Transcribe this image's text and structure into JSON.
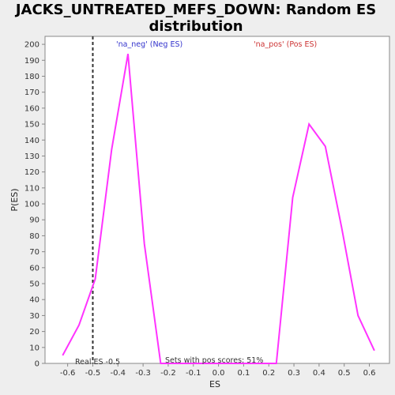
{
  "chart_data": {
    "type": "line",
    "title_line1": "JACKS_UNTREATED_MEFS_DOWN: Random ES",
    "title_line2": "distribution",
    "xlabel": "ES",
    "ylabel": "P(ES)",
    "xlim": [
      -0.69,
      0.68
    ],
    "ylim": [
      0,
      205
    ],
    "xticks": [
      "-0.6",
      "-0.5",
      "-0.4",
      "-0.3",
      "-0.2",
      "-0.1",
      "0.0",
      "0.1",
      "0.2",
      "0.3",
      "0.4",
      "0.5",
      "0.6"
    ],
    "xtick_values": [
      -0.6,
      -0.5,
      -0.4,
      -0.3,
      -0.2,
      -0.1,
      0.0,
      0.1,
      0.2,
      0.3,
      0.4,
      0.5,
      0.6
    ],
    "yticks": [
      0,
      10,
      20,
      30,
      40,
      50,
      60,
      70,
      80,
      90,
      100,
      110,
      120,
      130,
      140,
      150,
      160,
      170,
      180,
      190,
      200
    ],
    "grid": false,
    "series": [
      {
        "color": "#ff33ff",
        "x": [
          -0.62,
          -0.555,
          -0.49,
          -0.425,
          -0.36,
          -0.295,
          -0.23,
          -0.165,
          -0.1,
          -0.035,
          0.03,
          0.095,
          0.16,
          0.23,
          0.295,
          0.36,
          0.425,
          0.49,
          0.555,
          0.62
        ],
        "y": [
          5,
          24,
          53,
          134,
          194,
          75,
          0,
          0,
          0,
          0,
          0,
          0,
          0,
          0,
          104,
          150,
          136,
          85,
          30,
          8
        ]
      }
    ],
    "real_es": -0.5,
    "real_es_color": "#333333",
    "annotations": {
      "neg_label": "'na_neg' (Neg ES)",
      "neg_color": "#3333cc",
      "pos_label": "'na_pos' (Pos ES)",
      "pos_color": "#cc3333",
      "real_es_label": "Real ES -0.5",
      "sets_label": "Sets with pos scores: 51%"
    },
    "plot_background": "#ffffff"
  }
}
